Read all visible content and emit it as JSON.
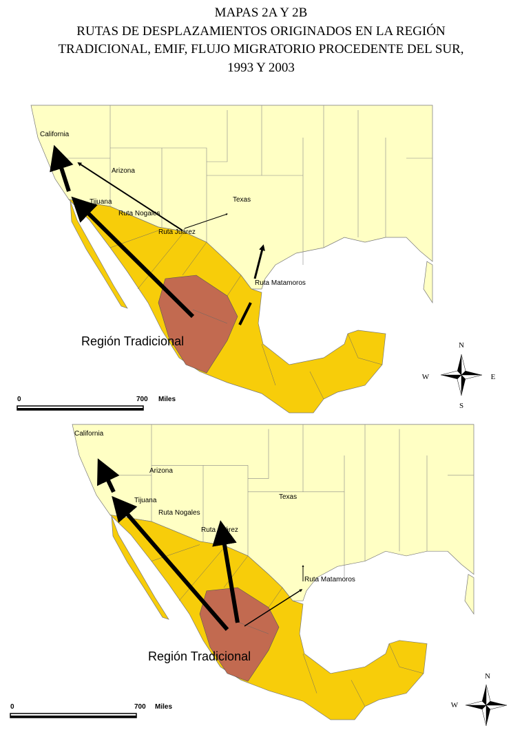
{
  "title": [
    "MAPAS 2A Y 2B",
    "RUTAS DE DESPLAZAMIENTOS ORIGINADOS EN LA REGIÓN",
    "TRADICIONAL, EMIF, FLUJO MIGRATORIO PROCEDENTE DEL SUR,",
    "1993 Y 2003"
  ],
  "maps": [
    {
      "labels": {
        "california": "California",
        "arizona": "Arizona",
        "texas": "Texas",
        "tijuana": "Tijuana",
        "nogales": "Ruta Nogales",
        "juarez": "Ruta Juárez",
        "matamoros": "Ruta Matamoros",
        "region": "Región Tradicional"
      },
      "scale": {
        "start": 0,
        "end": 700,
        "unit": "Miles"
      },
      "compass": {
        "n": "N",
        "w": "W",
        "e": "E",
        "s": "S"
      }
    },
    {
      "labels": {
        "california": "California",
        "arizona": "Arizona",
        "texas": "Texas",
        "tijuana": "Tijuana",
        "nogales": "Ruta Nogales",
        "juarez": "Ruta Juárez",
        "matamoros": "Ruta Matamoros",
        "region": "Región Tradicional"
      },
      "scale": {
        "start": 0,
        "end": 700,
        "unit": "Miles"
      },
      "compass": {
        "n": "N",
        "w": "W"
      }
    }
  ]
}
